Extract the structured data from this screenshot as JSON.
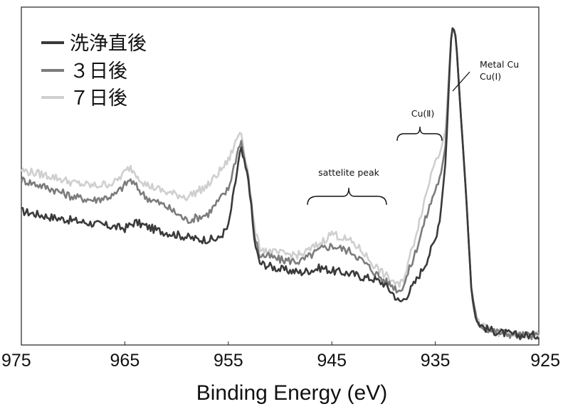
{
  "chart_data": {
    "type": "line",
    "title": "",
    "xlabel": "Binding Energy (eV)",
    "ylabel": "",
    "xlim": [
      975,
      925
    ],
    "ylim": [
      0,
      100
    ],
    "x_ticks": [
      "975",
      "965",
      "955",
      "945",
      "935",
      "925"
    ],
    "x_tick_values": [
      975,
      965,
      955,
      945,
      935,
      925
    ],
    "legend": "top-left",
    "grid": false,
    "series": [
      {
        "name": "洗浄直後",
        "color": "#3a3a3a",
        "x": [
          975,
          972,
          969,
          967,
          965,
          964,
          962,
          960,
          958,
          956,
          955,
          953.8,
          953,
          952.5,
          952,
          951,
          950,
          948,
          946,
          945,
          944,
          943,
          942,
          941,
          940,
          939,
          938.5,
          938,
          937,
          936,
          935,
          934.5,
          934,
          933.5,
          933.3,
          933,
          932.6,
          932,
          931.5,
          931,
          930.5,
          930,
          929,
          928,
          927,
          925
        ],
        "y": [
          41,
          39,
          37.5,
          36.5,
          35.5,
          37.5,
          35,
          33.5,
          32,
          32,
          36,
          61,
          50,
          32,
          24.5,
          23.5,
          22.5,
          21.5,
          23,
          22,
          21.5,
          21,
          20,
          19.5,
          18,
          14.5,
          12,
          13,
          18,
          24,
          32,
          40,
          57,
          95,
          100,
          96,
          75,
          45,
          15,
          6,
          4.5,
          3.5,
          2.5,
          2,
          1.5,
          1.5
        ]
      },
      {
        "name": "３日後",
        "color": "#7c7c7c",
        "x": [
          975,
          972,
          970,
          968,
          966,
          964.5,
          963,
          961,
          959,
          957,
          955,
          953.8,
          953,
          952.5,
          952,
          951,
          950,
          948,
          946,
          945,
          944,
          943,
          942,
          941,
          940,
          939,
          938.5,
          938,
          937,
          936,
          935,
          934.5,
          934,
          933.5,
          933.3,
          933,
          932.6,
          932,
          931.5,
          931,
          930.5,
          930,
          929,
          928,
          927,
          925
        ],
        "y": [
          51,
          48,
          45.5,
          44.5,
          46,
          51,
          45.5,
          42.5,
          38,
          40,
          48,
          64,
          50,
          34,
          27,
          26.5,
          25.5,
          25,
          29,
          30,
          29,
          28,
          25,
          22,
          19,
          17,
          15.5,
          18,
          27,
          38,
          48,
          52,
          62,
          95,
          100,
          96,
          75,
          45,
          15,
          6,
          4.5,
          3.5,
          2.5,
          2,
          1.5,
          1.5
        ]
      },
      {
        "name": "７日後",
        "color": "#cfcfcf",
        "x": [
          975,
          972,
          970,
          968,
          966,
          964.5,
          963,
          961,
          959,
          957,
          955,
          953.8,
          953,
          952.5,
          952,
          951,
          950,
          948,
          946,
          945,
          944,
          943,
          942,
          941,
          940,
          939,
          938.5,
          938,
          937,
          936,
          935,
          934.5,
          934,
          933.5,
          933.3,
          933,
          932.6,
          932,
          931.5,
          931,
          930.5,
          930,
          929,
          928,
          927,
          925
        ],
        "y": [
          54,
          52,
          50,
          49,
          50,
          55,
          49.5,
          47,
          45.5,
          49,
          57,
          67,
          51,
          36,
          29.5,
          28,
          27.5,
          27,
          31,
          34,
          32.5,
          31,
          28,
          24,
          21,
          18.5,
          17,
          20,
          32,
          45,
          58,
          60,
          67,
          95,
          100,
          96,
          75,
          45,
          15,
          6,
          4.5,
          3.5,
          2.5,
          2,
          1.5,
          1.5
        ]
      }
    ],
    "annotations": [
      {
        "text": "sattelite peak",
        "x_from": 948,
        "x_to": 939,
        "y": 45
      },
      {
        "text": "Cu(Ⅱ)",
        "x_from": 938.5,
        "x_to": 934,
        "y": 64
      },
      {
        "text": "Metal Cu",
        "x": 933,
        "y": 85
      },
      {
        "text": "Cu(Ⅰ)",
        "x": 933,
        "y": 85
      }
    ]
  }
}
